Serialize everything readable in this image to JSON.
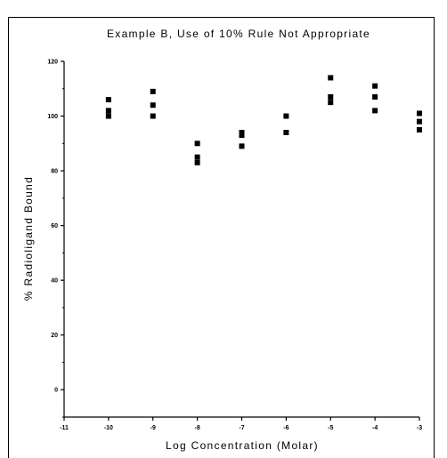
{
  "chart_data": {
    "type": "scatter",
    "title": "Example B, Use of 10%  Rule Not Appropriate",
    "xlabel": "Log Concentration (Molar)",
    "ylabel": "% Radioligand Bound",
    "xlim": [
      -11,
      -3
    ],
    "ylim": [
      -10,
      120
    ],
    "x_ticks": [
      -11,
      -10,
      -9,
      -8,
      -7,
      -6,
      -5,
      -4,
      -3
    ],
    "x_tick_labels": [
      "-11",
      "-10",
      "-9",
      "-8",
      "-7",
      "-6",
      "-5",
      "-4",
      "-3"
    ],
    "y_ticks": [
      0,
      20,
      40,
      60,
      80,
      100,
      120
    ],
    "y_tick_labels": [
      "0",
      "20",
      "40",
      "60",
      "80",
      "100",
      "120"
    ],
    "grid": false,
    "marker": "square",
    "series": [
      {
        "points": [
          {
            "x": -10,
            "y": 106
          },
          {
            "x": -10,
            "y": 102
          },
          {
            "x": -10,
            "y": 100
          },
          {
            "x": -9,
            "y": 109
          },
          {
            "x": -9,
            "y": 104
          },
          {
            "x": -9,
            "y": 100
          },
          {
            "x": -8,
            "y": 90
          },
          {
            "x": -8,
            "y": 85
          },
          {
            "x": -8,
            "y": 83
          },
          {
            "x": -7,
            "y": 94
          },
          {
            "x": -7,
            "y": 93
          },
          {
            "x": -7,
            "y": 89
          },
          {
            "x": -6,
            "y": 100
          },
          {
            "x": -6,
            "y": 94
          },
          {
            "x": -5,
            "y": 114
          },
          {
            "x": -5,
            "y": 107
          },
          {
            "x": -5,
            "y": 105
          },
          {
            "x": -4,
            "y": 111
          },
          {
            "x": -4,
            "y": 107
          },
          {
            "x": -4,
            "y": 102
          },
          {
            "x": -3,
            "y": 101
          },
          {
            "x": -3,
            "y": 98
          },
          {
            "x": -3,
            "y": 95
          }
        ]
      }
    ],
    "colors": {
      "marker": "#000000",
      "axis": "#000000",
      "frame": "#000000",
      "background": "#ffffff"
    }
  }
}
